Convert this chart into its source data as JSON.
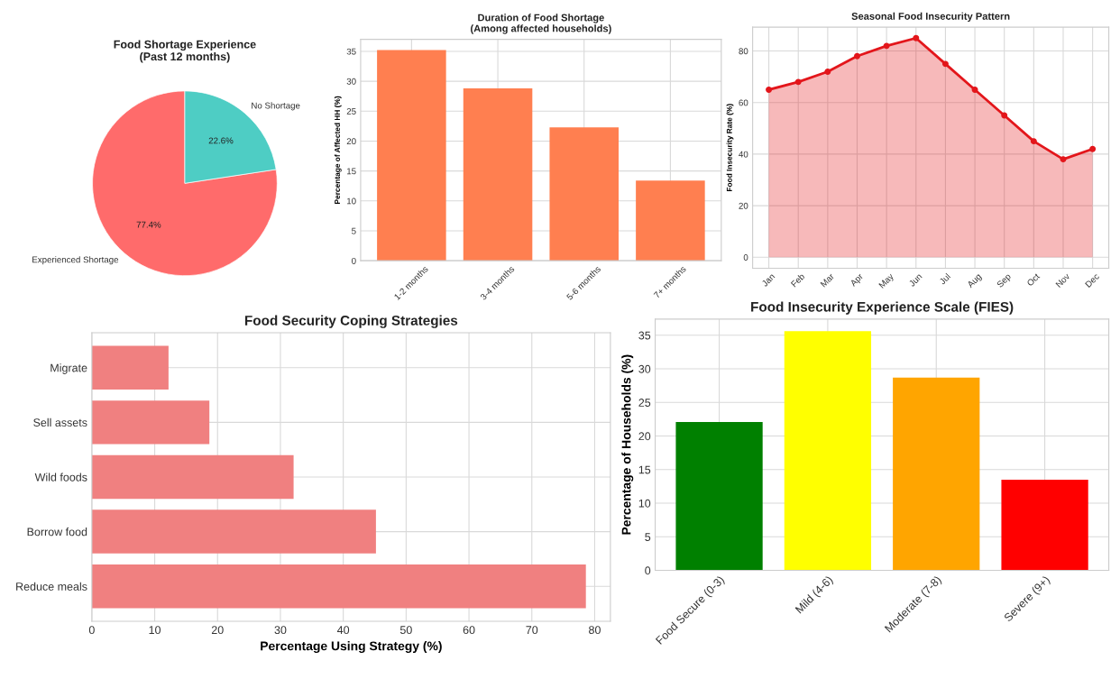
{
  "chart_data": [
    {
      "type": "pie",
      "title": "Food Shortage Experience\n(Past 12 months)",
      "categories": [
        "Experienced Shortage",
        "No Shortage"
      ],
      "values": [
        77.4,
        22.6
      ],
      "colors": [
        "#ff6b6b",
        "#4ecdc4"
      ],
      "value_labels": [
        "77.4%",
        "22.6%"
      ]
    },
    {
      "type": "bar",
      "title": "Duration of Food Shortage\n(Among affected households)",
      "ylabel": "Percentage of Affected HH (%)",
      "categories": [
        "1-2 months",
        "3-4 months",
        "5-6 months",
        "7+ months"
      ],
      "values": [
        35.2,
        28.8,
        22.3,
        13.4
      ],
      "color": "#ff7f50",
      "ylim": [
        0,
        37
      ],
      "yticks": [
        0,
        5,
        10,
        15,
        20,
        25,
        30,
        35
      ],
      "grid": true
    },
    {
      "type": "area",
      "title": "Seasonal Food Insecurity Pattern",
      "ylabel": "Food Insecurity Rate (%)",
      "categories": [
        "Jan",
        "Feb",
        "Mar",
        "Apr",
        "May",
        "Jun",
        "Jul",
        "Aug",
        "Sep",
        "Oct",
        "Nov",
        "Dec"
      ],
      "values": [
        65,
        68,
        72,
        78,
        82,
        85,
        75,
        65,
        55,
        45,
        38,
        42
      ],
      "color": "#e3161b",
      "marker": "circle",
      "line_style": "solid",
      "ylim": [
        -4.25,
        89.25
      ],
      "yticks": [
        0,
        20,
        40,
        60,
        80
      ],
      "grid": true
    },
    {
      "type": "bar",
      "orientation": "horizontal",
      "title": "Food Security Coping Strategies",
      "xlabel": "Percentage Using Strategy (%)",
      "categories": [
        "Migrate",
        "Sell assets",
        "Wild foods",
        "Borrow food",
        "Reduce meals"
      ],
      "values": [
        12.2,
        18.7,
        32.1,
        45.2,
        78.6
      ],
      "color": "#f08080",
      "xlim": [
        0,
        82.5
      ],
      "xticks": [
        0,
        10,
        20,
        30,
        40,
        50,
        60,
        70,
        80
      ],
      "grid": true
    },
    {
      "type": "bar",
      "title": "Food Insecurity Experience Scale (FIES)",
      "ylabel": "Percentage of Households (%)",
      "categories": [
        "Food Secure (0-3)",
        "Mild (4-6)",
        "Moderate (7-8)",
        "Severe (9+)"
      ],
      "values": [
        22.1,
        35.6,
        28.7,
        13.5
      ],
      "colors": [
        "#008000",
        "#ffff00",
        "#ffa500",
        "#ff0000"
      ],
      "ylim": [
        0,
        37.4
      ],
      "yticks": [
        0,
        5,
        10,
        15,
        20,
        25,
        30,
        35
      ],
      "grid": true
    }
  ]
}
